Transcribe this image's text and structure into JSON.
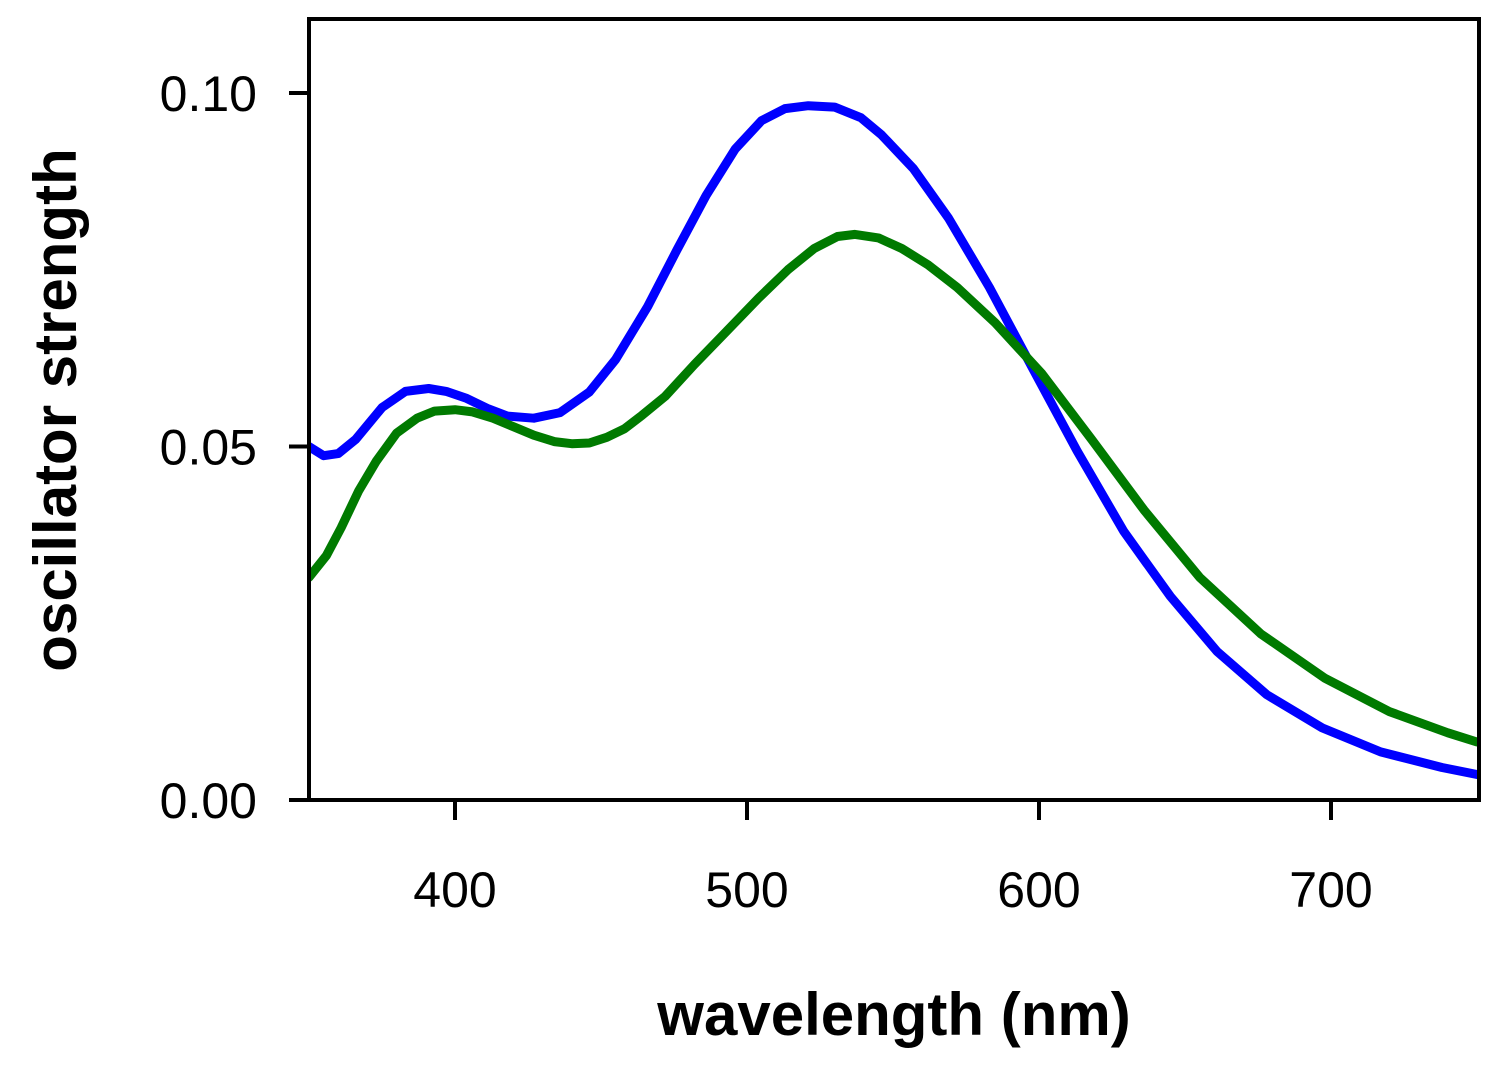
{
  "chart_data": {
    "type": "line",
    "title": "",
    "xlabel": "wavelength (nm)",
    "ylabel": "oscillator strength",
    "xlim": [
      350,
      750
    ],
    "ylim": [
      0.0,
      0.11
    ],
    "xticks": [
      400,
      500,
      600,
      700
    ],
    "xtick_labels": [
      "400",
      "500",
      "600",
      "700"
    ],
    "yticks": [
      0.0,
      0.05,
      0.1
    ],
    "ytick_labels": [
      "0.00",
      "0.05",
      "0.10"
    ],
    "grid": false,
    "legend": "none",
    "series": [
      {
        "name": "blue",
        "color": "#0000ff",
        "x": [
          350,
          355,
          360,
          366,
          375,
          383,
          391,
          397,
          404,
          411,
          418,
          427,
          436,
          446,
          455,
          466,
          476,
          486,
          496,
          505,
          513,
          521,
          530,
          539,
          546,
          557,
          569,
          583,
          598,
          613,
          629,
          645,
          661,
          678,
          697,
          717,
          738,
          750
        ],
        "y": [
          0.05,
          0.0487,
          0.049,
          0.051,
          0.0555,
          0.0578,
          0.0582,
          0.0578,
          0.0568,
          0.0554,
          0.0543,
          0.054,
          0.0548,
          0.0577,
          0.0623,
          0.0698,
          0.0778,
          0.0855,
          0.0921,
          0.0961,
          0.0978,
          0.0982,
          0.098,
          0.0965,
          0.0941,
          0.0893,
          0.0823,
          0.0725,
          0.0609,
          0.0494,
          0.038,
          0.0288,
          0.021,
          0.0149,
          0.0102,
          0.0068,
          0.0046,
          0.0036
        ]
      },
      {
        "name": "green",
        "color": "#007a00",
        "x": [
          350,
          356,
          361,
          367,
          373,
          380,
          387,
          393,
          400,
          406,
          413,
          420,
          427,
          434,
          440,
          446,
          452,
          458,
          464,
          472,
          482,
          493,
          504,
          514,
          523,
          531,
          537,
          545,
          553,
          562,
          572,
          585,
          601,
          618,
          636,
          655,
          676,
          698,
          720,
          740,
          750
        ],
        "y": [
          0.0315,
          0.0346,
          0.0385,
          0.0437,
          0.0479,
          0.0519,
          0.054,
          0.055,
          0.0552,
          0.0549,
          0.054,
          0.0528,
          0.0516,
          0.0507,
          0.0504,
          0.0505,
          0.0513,
          0.0525,
          0.0544,
          0.0571,
          0.0616,
          0.0663,
          0.071,
          0.075,
          0.078,
          0.0797,
          0.08,
          0.0795,
          0.078,
          0.0757,
          0.0725,
          0.0675,
          0.0603,
          0.051,
          0.041,
          0.0315,
          0.0235,
          0.0172,
          0.0125,
          0.0095,
          0.0082
        ]
      }
    ]
  }
}
